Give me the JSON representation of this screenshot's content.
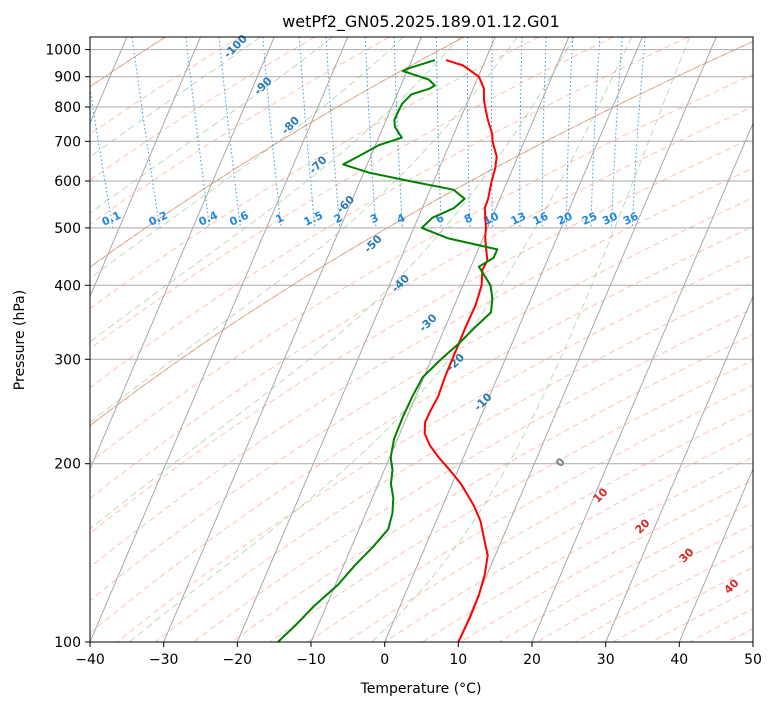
{
  "chart_data": {
    "type": "line",
    "title": "wetPf2_GN05.2025.189.01.12.G01",
    "xlabel": "Temperature (°C)",
    "ylabel": "Pressure (hPa)",
    "xlim": [
      -40,
      50
    ],
    "ylim": [
      1050,
      100
    ],
    "y_scale": "log",
    "x_ticks": [
      -40,
      -30,
      -20,
      -10,
      0,
      10,
      20,
      30,
      40,
      50
    ],
    "y_ticks": [
      100,
      200,
      300,
      400,
      500,
      600,
      700,
      800,
      900,
      1000
    ],
    "grid": true,
    "skew": 35,
    "colors": {
      "temperature": "#ff0000",
      "dewpoint": "#008000",
      "isotherm": "#a9a9a9",
      "dry_adiabat": "#ff6a3d",
      "moist_adiabat": "#3fa33f",
      "mixing_ratio": "#1e88e5",
      "theta_e": "#c8a27a",
      "label_blue": "#2a7ab8",
      "label_red": "#d62728",
      "label_grey": "#808080"
    },
    "series": [
      {
        "name": "Temperature",
        "key": "temperature",
        "points": [
          [
            960,
            7.0
          ],
          [
            940,
            9.0
          ],
          [
            900,
            10.5
          ],
          [
            860,
            10.5
          ],
          [
            820,
            9.8
          ],
          [
            790,
            9.5
          ],
          [
            760,
            9.2
          ],
          [
            720,
            9.0
          ],
          [
            700,
            8.6
          ],
          [
            660,
            8.3
          ],
          [
            630,
            7.4
          ],
          [
            600,
            6.2
          ],
          [
            560,
            4.7
          ],
          [
            540,
            3.7
          ],
          [
            500,
            2.7
          ],
          [
            480,
            2.0
          ],
          [
            460,
            1.5
          ],
          [
            440,
            1.0
          ],
          [
            425,
            -0.2
          ],
          [
            400,
            -1.2
          ],
          [
            370,
            -3.2
          ],
          [
            340,
            -5.8
          ],
          [
            310,
            -8.5
          ],
          [
            280,
            -11.5
          ],
          [
            260,
            -13.5
          ],
          [
            245,
            -15.5
          ],
          [
            235,
            -16.8
          ],
          [
            225,
            -17.5
          ],
          [
            215,
            -17.5
          ],
          [
            205,
            -17.0
          ],
          [
            195,
            -16.2
          ],
          [
            185,
            -15.5
          ],
          [
            170,
            -15.0
          ],
          [
            160,
            -15.0
          ],
          [
            150,
            -15.5
          ],
          [
            140,
            -16.0
          ],
          [
            130,
            -17.5
          ],
          [
            120,
            -19.5
          ],
          [
            110,
            -22.0
          ],
          [
            100,
            -25.0
          ]
        ]
      },
      {
        "name": "Dewpoint",
        "key": "dewpoint",
        "points": [
          [
            960,
            5.5
          ],
          [
            930,
            1.5
          ],
          [
            920,
            0.5
          ],
          [
            910,
            1.5
          ],
          [
            890,
            3.5
          ],
          [
            870,
            4.0
          ],
          [
            860,
            3.2
          ],
          [
            840,
            0.3
          ],
          [
            810,
            -1.5
          ],
          [
            785,
            -2.5
          ],
          [
            760,
            -3.5
          ],
          [
            740,
            -3.8
          ],
          [
            710,
            -3.5
          ],
          [
            690,
            -7.0
          ],
          [
            660,
            -10.5
          ],
          [
            640,
            -13.0
          ],
          [
            620,
            -10.0
          ],
          [
            600,
            -5.0
          ],
          [
            580,
            0.5
          ],
          [
            560,
            1.5
          ],
          [
            540,
            -0.5
          ],
          [
            520,
            -4.0
          ],
          [
            500,
            -6.0
          ],
          [
            480,
            -3.0
          ],
          [
            460,
            3.0
          ],
          [
            445,
            2.0
          ],
          [
            430,
            -0.5
          ],
          [
            400,
            0.0
          ],
          [
            380,
            -0.5
          ],
          [
            360,
            -1.5
          ],
          [
            340,
            -4.5
          ],
          [
            320,
            -7.5
          ],
          [
            300,
            -11.0
          ],
          [
            280,
            -14.5
          ],
          [
            260,
            -17.0
          ],
          [
            240,
            -19.5
          ],
          [
            220,
            -22.0
          ],
          [
            205,
            -23.5
          ],
          [
            195,
            -24.0
          ],
          [
            185,
            -25.0
          ],
          [
            175,
            -25.5
          ],
          [
            165,
            -26.5
          ],
          [
            155,
            -28.0
          ],
          [
            145,
            -31.0
          ],
          [
            135,
            -34.5
          ],
          [
            125,
            -38.0
          ],
          [
            115,
            -42.5
          ],
          [
            107,
            -46.0
          ],
          [
            100,
            -49.5
          ]
        ]
      }
    ],
    "annotations": {
      "isotherm_labels": [
        "-100",
        "-90",
        "-80",
        "-70",
        "-60",
        "-50",
        "-40",
        "-30",
        "-20",
        "-10"
      ],
      "mixing_ratio_labels": [
        "0.1",
        "0.2",
        "0.4",
        "0.6",
        "1",
        "1.5",
        "2",
        "3",
        "4",
        "6",
        "8",
        "10",
        "13",
        "16",
        "20",
        "25",
        "30",
        "36"
      ],
      "theta_e_labels": [
        "0",
        "10",
        "20",
        "30",
        "40"
      ]
    }
  }
}
